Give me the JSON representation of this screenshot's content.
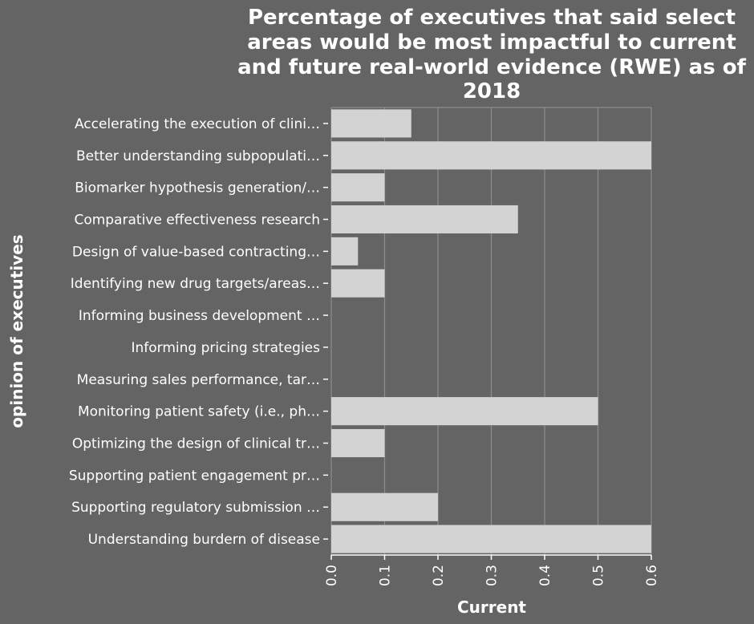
{
  "chart_data": {
    "type": "bar",
    "orientation": "horizontal",
    "title_lines": [
      "Percentage of executives that said select",
      "areas would be most impactful to current",
      "and future real-world evidence (RWE) as of",
      "2018"
    ],
    "xlabel": "Current",
    "ylabel": "opinion of executives",
    "xlim": [
      0,
      0.6
    ],
    "xticks": [
      "0.0",
      "0.1",
      "0.2",
      "0.3",
      "0.4",
      "0.5",
      "0.6"
    ],
    "grid": "vertical",
    "categories": [
      "Accelerating the execution of clini…",
      "Better understanding subpopulati…",
      "Biomarker hypothesis generation/…",
      "Comparative effectiveness research",
      "Design of value-based contracting…",
      "Identifying new drug targets/areas…",
      "Informing business development …",
      "Informing pricing strategies",
      "Measuring sales performance, tar…",
      "Monitoring patient safety (i.e., ph…",
      "Optimizing the design of clinical tr…",
      "Supporting patient engagement pr…",
      "Supporting regulatory submission …",
      "Understanding burdern of disease"
    ],
    "values": [
      0.15,
      0.6,
      0.1,
      0.35,
      0.05,
      0.1,
      0,
      0,
      0,
      0.5,
      0.1,
      0,
      0.2,
      0.6
    ],
    "colors": {
      "background": "#646464",
      "bar": "#d3d3d3",
      "grid": "#8c8c8c",
      "text": "#ffffff"
    }
  }
}
